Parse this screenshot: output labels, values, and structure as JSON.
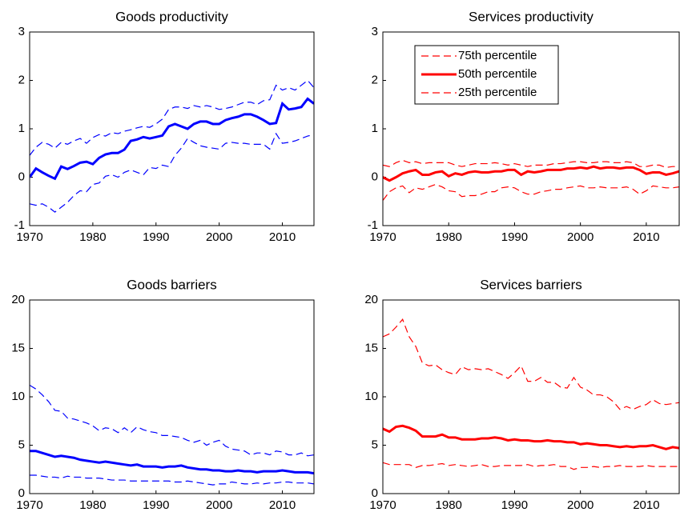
{
  "chart_data": [
    {
      "type": "line",
      "title": "Goods productivity",
      "x": [
        1970,
        1971,
        1972,
        1973,
        1974,
        1975,
        1976,
        1977,
        1978,
        1979,
        1980,
        1981,
        1982,
        1983,
        1984,
        1985,
        1986,
        1987,
        1988,
        1989,
        1990,
        1991,
        1992,
        1993,
        1994,
        1995,
        1996,
        1997,
        1998,
        1999,
        2000,
        2001,
        2002,
        2003,
        2004,
        2005,
        2006,
        2007,
        2008,
        2009,
        2010,
        2011,
        2012,
        2013,
        2014,
        2015
      ],
      "xlim": [
        1970,
        2015
      ],
      "xticks": [
        1970,
        1980,
        1990,
        2000,
        2010
      ],
      "ylim": [
        -1,
        3
      ],
      "yticks": [
        -1,
        0,
        1,
        2,
        3
      ],
      "series": [
        {
          "color": "#0000ff",
          "line_style": "dashed",
          "line_width": 1.2,
          "values": [
            0.45,
            0.62,
            0.72,
            0.68,
            0.6,
            0.72,
            0.68,
            0.75,
            0.8,
            0.7,
            0.82,
            0.88,
            0.85,
            0.92,
            0.9,
            0.95,
            0.98,
            1.02,
            1.05,
            1.03,
            1.1,
            1.2,
            1.4,
            1.45,
            1.45,
            1.42,
            1.48,
            1.45,
            1.48,
            1.45,
            1.4,
            1.42,
            1.45,
            1.5,
            1.55,
            1.55,
            1.5,
            1.58,
            1.6,
            1.9,
            1.8,
            1.85,
            1.8,
            1.9,
            2.0,
            1.85
          ]
        },
        {
          "color": "#0000ff",
          "line_style": "solid",
          "line_width": 3,
          "values": [
            0.0,
            0.18,
            0.1,
            0.03,
            -0.03,
            0.22,
            0.17,
            0.23,
            0.3,
            0.32,
            0.27,
            0.4,
            0.47,
            0.5,
            0.5,
            0.57,
            0.75,
            0.78,
            0.83,
            0.8,
            0.83,
            0.86,
            1.05,
            1.1,
            1.05,
            1.0,
            1.1,
            1.15,
            1.15,
            1.1,
            1.1,
            1.18,
            1.22,
            1.25,
            1.3,
            1.3,
            1.25,
            1.18,
            1.1,
            1.12,
            1.52,
            1.4,
            1.42,
            1.45,
            1.62,
            1.52
          ]
        },
        {
          "color": "#0000ff",
          "line_style": "dashed",
          "line_width": 1.2,
          "values": [
            -0.55,
            -0.58,
            -0.55,
            -0.62,
            -0.72,
            -0.62,
            -0.52,
            -0.38,
            -0.28,
            -0.3,
            -0.15,
            -0.12,
            0.02,
            0.05,
            0.0,
            0.1,
            0.15,
            0.1,
            0.05,
            0.2,
            0.18,
            0.25,
            0.22,
            0.45,
            0.6,
            0.8,
            0.72,
            0.65,
            0.62,
            0.6,
            0.58,
            0.7,
            0.72,
            0.7,
            0.7,
            0.68,
            0.68,
            0.68,
            0.58,
            0.9,
            0.7,
            0.72,
            0.75,
            0.8,
            0.85,
            0.88
          ]
        }
      ]
    },
    {
      "type": "line",
      "title": "Services productivity",
      "legend": "upper left",
      "x": [
        1970,
        1971,
        1972,
        1973,
        1974,
        1975,
        1976,
        1977,
        1978,
        1979,
        1980,
        1981,
        1982,
        1983,
        1984,
        1985,
        1986,
        1987,
        1988,
        1989,
        1990,
        1991,
        1992,
        1993,
        1994,
        1995,
        1996,
        1997,
        1998,
        1999,
        2000,
        2001,
        2002,
        2003,
        2004,
        2005,
        2006,
        2007,
        2008,
        2009,
        2010,
        2011,
        2012,
        2013,
        2014,
        2015
      ],
      "xlim": [
        1970,
        2015
      ],
      "xticks": [
        1970,
        1980,
        1990,
        2000,
        2010
      ],
      "ylim": [
        -1,
        3
      ],
      "yticks": [
        -1,
        0,
        1,
        2,
        3
      ],
      "series": [
        {
          "name": "75th percentile",
          "color": "#ff0000",
          "line_style": "dashed",
          "line_width": 1.2,
          "values": [
            0.25,
            0.22,
            0.3,
            0.35,
            0.3,
            0.32,
            0.28,
            0.3,
            0.3,
            0.3,
            0.3,
            0.25,
            0.22,
            0.25,
            0.28,
            0.28,
            0.28,
            0.3,
            0.28,
            0.25,
            0.28,
            0.25,
            0.22,
            0.25,
            0.25,
            0.25,
            0.28,
            0.28,
            0.3,
            0.32,
            0.32,
            0.3,
            0.3,
            0.32,
            0.32,
            0.3,
            0.3,
            0.32,
            0.3,
            0.22,
            0.22,
            0.25,
            0.25,
            0.2,
            0.22,
            0.22
          ]
        },
        {
          "name": "50th percentile",
          "color": "#ff0000",
          "line_style": "solid",
          "line_width": 3,
          "values": [
            0.0,
            -0.07,
            0.0,
            0.08,
            0.12,
            0.15,
            0.05,
            0.05,
            0.1,
            0.12,
            0.02,
            0.08,
            0.05,
            0.1,
            0.12,
            0.1,
            0.1,
            0.12,
            0.12,
            0.15,
            0.15,
            0.05,
            0.12,
            0.1,
            0.12,
            0.15,
            0.15,
            0.15,
            0.18,
            0.18,
            0.2,
            0.18,
            0.22,
            0.18,
            0.2,
            0.2,
            0.18,
            0.2,
            0.2,
            0.15,
            0.07,
            0.1,
            0.1,
            0.05,
            0.08,
            0.12
          ]
        },
        {
          "name": "25th percentile",
          "color": "#ff0000",
          "line_style": "dashed",
          "line_width": 1.2,
          "values": [
            -0.48,
            -0.3,
            -0.22,
            -0.18,
            -0.32,
            -0.22,
            -0.25,
            -0.2,
            -0.15,
            -0.2,
            -0.28,
            -0.3,
            -0.4,
            -0.38,
            -0.38,
            -0.35,
            -0.3,
            -0.3,
            -0.22,
            -0.2,
            -0.22,
            -0.3,
            -0.35,
            -0.35,
            -0.3,
            -0.28,
            -0.25,
            -0.25,
            -0.22,
            -0.2,
            -0.18,
            -0.22,
            -0.22,
            -0.2,
            -0.22,
            -0.22,
            -0.22,
            -0.2,
            -0.25,
            -0.35,
            -0.28,
            -0.18,
            -0.2,
            -0.22,
            -0.22,
            -0.2
          ]
        }
      ]
    },
    {
      "type": "line",
      "title": "Goods barriers",
      "x": [
        1970,
        1971,
        1972,
        1973,
        1974,
        1975,
        1976,
        1977,
        1978,
        1979,
        1980,
        1981,
        1982,
        1983,
        1984,
        1985,
        1986,
        1987,
        1988,
        1989,
        1990,
        1991,
        1992,
        1993,
        1994,
        1995,
        1996,
        1997,
        1998,
        1999,
        2000,
        2001,
        2002,
        2003,
        2004,
        2005,
        2006,
        2007,
        2008,
        2009,
        2010,
        2011,
        2012,
        2013,
        2014,
        2015
      ],
      "xlim": [
        1970,
        2015
      ],
      "xticks": [
        1970,
        1980,
        1990,
        2000,
        2010
      ],
      "ylim": [
        0,
        20
      ],
      "yticks": [
        0,
        5,
        10,
        15,
        20
      ],
      "series": [
        {
          "color": "#0000ff",
          "line_style": "dashed",
          "line_width": 1.2,
          "values": [
            11.2,
            10.8,
            10.2,
            9.5,
            8.6,
            8.5,
            7.8,
            7.7,
            7.5,
            7.3,
            7.0,
            6.5,
            6.8,
            6.7,
            6.3,
            6.8,
            6.3,
            6.9,
            6.6,
            6.4,
            6.3,
            6.0,
            6.0,
            5.9,
            5.8,
            5.5,
            5.3,
            5.5,
            5.0,
            5.3,
            5.5,
            4.9,
            4.6,
            4.5,
            4.4,
            4.0,
            4.2,
            4.2,
            4.0,
            4.4,
            4.3,
            4.0,
            4.0,
            4.2,
            3.9,
            4.0
          ]
        },
        {
          "color": "#0000ff",
          "line_style": "solid",
          "line_width": 3,
          "values": [
            4.4,
            4.4,
            4.2,
            4.0,
            3.8,
            3.9,
            3.8,
            3.7,
            3.5,
            3.4,
            3.3,
            3.2,
            3.3,
            3.2,
            3.1,
            3.0,
            2.9,
            3.0,
            2.8,
            2.8,
            2.8,
            2.7,
            2.8,
            2.8,
            2.9,
            2.7,
            2.6,
            2.5,
            2.5,
            2.4,
            2.4,
            2.3,
            2.3,
            2.4,
            2.3,
            2.3,
            2.2,
            2.3,
            2.3,
            2.3,
            2.4,
            2.3,
            2.2,
            2.2,
            2.2,
            2.1
          ]
        },
        {
          "color": "#0000ff",
          "line_style": "dashed",
          "line_width": 1.2,
          "values": [
            1.9,
            1.9,
            1.8,
            1.7,
            1.7,
            1.6,
            1.8,
            1.7,
            1.7,
            1.6,
            1.6,
            1.6,
            1.5,
            1.4,
            1.4,
            1.4,
            1.3,
            1.3,
            1.3,
            1.3,
            1.3,
            1.3,
            1.3,
            1.2,
            1.2,
            1.3,
            1.2,
            1.1,
            1.0,
            0.9,
            1.0,
            1.0,
            1.2,
            1.1,
            1.0,
            1.0,
            1.1,
            1.0,
            1.1,
            1.1,
            1.2,
            1.2,
            1.1,
            1.1,
            1.1,
            1.0
          ]
        }
      ]
    },
    {
      "type": "line",
      "title": "Services barriers",
      "x": [
        1970,
        1971,
        1972,
        1973,
        1974,
        1975,
        1976,
        1977,
        1978,
        1979,
        1980,
        1981,
        1982,
        1983,
        1984,
        1985,
        1986,
        1987,
        1988,
        1989,
        1990,
        1991,
        1992,
        1993,
        1994,
        1995,
        1996,
        1997,
        1998,
        1999,
        2000,
        2001,
        2002,
        2003,
        2004,
        2005,
        2006,
        2007,
        2008,
        2009,
        2010,
        2011,
        2012,
        2013,
        2014,
        2015
      ],
      "xlim": [
        1970,
        2015
      ],
      "xticks": [
        1970,
        1980,
        1990,
        2000,
        2010
      ],
      "ylim": [
        0,
        20
      ],
      "yticks": [
        0,
        5,
        10,
        15,
        20
      ],
      "series": [
        {
          "color": "#ff0000",
          "line_style": "dashed",
          "line_width": 1.2,
          "values": [
            16.2,
            16.5,
            17.2,
            18.0,
            16.2,
            15.2,
            13.5,
            13.2,
            13.3,
            12.8,
            12.5,
            12.3,
            13.1,
            12.8,
            12.9,
            12.8,
            12.9,
            12.6,
            12.3,
            11.9,
            12.5,
            13.2,
            11.6,
            11.6,
            12.0,
            11.5,
            11.5,
            11.0,
            10.9,
            12.0,
            11.0,
            10.7,
            10.2,
            10.2,
            10.0,
            9.5,
            8.7,
            9.0,
            8.7,
            9.0,
            9.2,
            9.7,
            9.3,
            9.2,
            9.3,
            9.4
          ]
        },
        {
          "color": "#ff0000",
          "line_style": "solid",
          "line_width": 3,
          "values": [
            6.7,
            6.4,
            6.9,
            7.0,
            6.8,
            6.5,
            5.9,
            5.9,
            5.9,
            6.1,
            5.8,
            5.8,
            5.6,
            5.6,
            5.6,
            5.7,
            5.7,
            5.8,
            5.7,
            5.5,
            5.6,
            5.5,
            5.5,
            5.4,
            5.4,
            5.5,
            5.4,
            5.4,
            5.3,
            5.3,
            5.1,
            5.2,
            5.1,
            5.0,
            5.0,
            4.9,
            4.8,
            4.9,
            4.8,
            4.9,
            4.9,
            5.0,
            4.8,
            4.6,
            4.8,
            4.7
          ]
        },
        {
          "color": "#ff0000",
          "line_style": "dashed",
          "line_width": 1.2,
          "values": [
            3.2,
            3.0,
            3.0,
            3.0,
            3.0,
            2.7,
            2.9,
            2.9,
            3.0,
            3.1,
            2.9,
            3.0,
            2.9,
            2.8,
            2.9,
            3.0,
            2.8,
            2.8,
            2.9,
            2.9,
            2.9,
            2.9,
            3.0,
            2.8,
            2.9,
            2.9,
            3.0,
            2.8,
            2.8,
            2.5,
            2.7,
            2.7,
            2.8,
            2.7,
            2.8,
            2.8,
            2.9,
            2.8,
            2.8,
            2.8,
            2.9,
            2.8,
            2.8,
            2.8,
            2.8,
            2.8
          ]
        }
      ]
    }
  ]
}
